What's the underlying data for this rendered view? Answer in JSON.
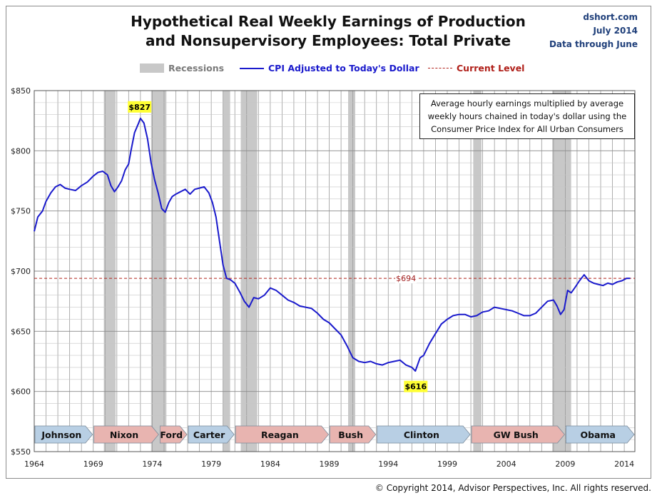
{
  "header": {
    "title_line1": "Hypothetical Real Weekly Earnings of Production",
    "title_line2": "and Nonsupervisory Employees: Total Private",
    "source_site": "dshort.com",
    "source_date": "July 2014",
    "source_data_through": "Data through June"
  },
  "legend": {
    "recessions": "Recessions",
    "series": "CPI Adjusted to Today's Dollar",
    "current": "Current Level"
  },
  "note": "Average hourly earnings multiplied by average weekly hours chained in today's dollar using the Consumer Price Index for All Urban Consumers",
  "copyright": "© Copyright 2014, Advisor Perspectives, Inc. All rights reserved.",
  "colors": {
    "series": "#1a1acc",
    "recession": "#c8c8c8",
    "current": "#b0201a",
    "callout": "#ffff33",
    "pres_blue": "#b8cfe4",
    "pres_red": "#e8b4b0"
  },
  "chart_data": {
    "type": "line",
    "title": "Hypothetical Real Weekly Earnings of Production and Nonsupervisory Employees: Total Private",
    "xlabel": "",
    "ylabel": "",
    "xlim": [
      1964,
      2014.9
    ],
    "ylim": [
      550,
      850
    ],
    "y_ticks": [
      550,
      600,
      650,
      700,
      750,
      800,
      850
    ],
    "y_tick_labels": [
      "$550",
      "$600",
      "$650",
      "$700",
      "$750",
      "$800",
      "$850"
    ],
    "x_ticks": [
      1964,
      1969,
      1974,
      1979,
      1984,
      1989,
      1994,
      1999,
      2004,
      2009,
      2014
    ],
    "x_tick_labels": [
      "1964",
      "1969",
      "1974",
      "1979",
      "1984",
      "1989",
      "1994",
      "1999",
      "2004",
      "2009",
      "2014"
    ],
    "grid": true,
    "series": [
      {
        "name": "CPI Adjusted to Today's Dollar",
        "x": [
          1964.0,
          1964.3,
          1964.7,
          1965.0,
          1965.4,
          1965.8,
          1966.2,
          1966.6,
          1967.0,
          1967.5,
          1968.0,
          1968.5,
          1969.0,
          1969.4,
          1969.8,
          1970.2,
          1970.5,
          1970.8,
          1971.1,
          1971.4,
          1971.7,
          1972.0,
          1972.2,
          1972.5,
          1972.8,
          1973.0,
          1973.3,
          1973.6,
          1973.9,
          1974.2,
          1974.5,
          1974.8,
          1975.1,
          1975.4,
          1975.7,
          1976.0,
          1976.4,
          1976.8,
          1977.2,
          1977.6,
          1978.0,
          1978.4,
          1978.8,
          1979.1,
          1979.4,
          1979.7,
          1980.0,
          1980.3,
          1980.6,
          1981.0,
          1981.4,
          1981.8,
          1982.2,
          1982.6,
          1983.0,
          1983.5,
          1984.0,
          1984.5,
          1985.0,
          1985.5,
          1986.0,
          1986.5,
          1987.0,
          1987.5,
          1988.0,
          1988.5,
          1989.0,
          1989.5,
          1990.0,
          1990.5,
          1991.0,
          1991.5,
          1992.0,
          1992.5,
          1993.0,
          1993.5,
          1994.0,
          1994.5,
          1995.0,
          1995.5,
          1996.0,
          1996.3,
          1996.7,
          1997.0,
          1997.5,
          1998.0,
          1998.5,
          1999.0,
          1999.5,
          2000.0,
          2000.5,
          2001.0,
          2001.5,
          2002.0,
          2002.5,
          2003.0,
          2003.5,
          2004.0,
          2004.5,
          2005.0,
          2005.5,
          2006.0,
          2006.5,
          2007.0,
          2007.5,
          2008.0,
          2008.3,
          2008.6,
          2008.9,
          2009.2,
          2009.5,
          2009.8,
          2010.2,
          2010.6,
          2011.0,
          2011.4,
          2011.8,
          2012.2,
          2012.6,
          2013.0,
          2013.4,
          2013.8,
          2014.2,
          2014.5
        ],
        "values": [
          733,
          745,
          750,
          758,
          765,
          770,
          772,
          769,
          768,
          767,
          771,
          774,
          779,
          782,
          783,
          780,
          771,
          766,
          770,
          775,
          784,
          789,
          800,
          815,
          822,
          827,
          823,
          810,
          790,
          776,
          765,
          752,
          749,
          757,
          762,
          764,
          766,
          768,
          764,
          768,
          769,
          770,
          765,
          757,
          745,
          725,
          705,
          694,
          693,
          690,
          683,
          675,
          670,
          678,
          677,
          680,
          686,
          684,
          680,
          676,
          674,
          671,
          670,
          669,
          665,
          660,
          657,
          652,
          647,
          638,
          628,
          625,
          624,
          625,
          623,
          622,
          624,
          625,
          626,
          622,
          620,
          617,
          628,
          630,
          640,
          648,
          656,
          660,
          663,
          664,
          664,
          662,
          663,
          666,
          667,
          670,
          669,
          668,
          667,
          665,
          663,
          663,
          665,
          670,
          675,
          676,
          671,
          664,
          668,
          684,
          682,
          686,
          692,
          697,
          692,
          690,
          689,
          688,
          690,
          689,
          691,
          692,
          694,
          694
        ]
      },
      {
        "name": "Current Level",
        "x": [
          1964,
          2014.9
        ],
        "values": [
          694,
          694
        ]
      }
    ],
    "recessions": [
      {
        "start": 1969.9,
        "end": 1970.9
      },
      {
        "start": 1973.9,
        "end": 1975.2
      },
      {
        "start": 1980.0,
        "end": 1980.6
      },
      {
        "start": 1981.5,
        "end": 1982.9
      },
      {
        "start": 1990.6,
        "end": 1991.2
      },
      {
        "start": 2001.2,
        "end": 2001.9
      },
      {
        "start": 2007.9,
        "end": 2009.5
      }
    ],
    "annotations": [
      {
        "text": "$827",
        "x": 1972.9,
        "y": 827
      },
      {
        "text": "$616",
        "x": 1996.3,
        "y": 616
      },
      {
        "text": "$694",
        "x": 1995.5,
        "y": 694
      }
    ],
    "presidents": [
      {
        "name": "Johnson",
        "start": 1964.0,
        "end": 1969.0,
        "party": "D"
      },
      {
        "name": "Nixon",
        "start": 1969.0,
        "end": 1974.6,
        "party": "R"
      },
      {
        "name": "Ford",
        "start": 1974.6,
        "end": 1977.0,
        "party": "R"
      },
      {
        "name": "Carter",
        "start": 1977.0,
        "end": 1981.0,
        "party": "D"
      },
      {
        "name": "Reagan",
        "start": 1981.0,
        "end": 1989.0,
        "party": "R"
      },
      {
        "name": "Bush",
        "start": 1989.0,
        "end": 1993.0,
        "party": "R"
      },
      {
        "name": "Clinton",
        "start": 1993.0,
        "end": 2001.0,
        "party": "D"
      },
      {
        "name": "GW Bush",
        "start": 2001.0,
        "end": 2009.0,
        "party": "R"
      },
      {
        "name": "Obama",
        "start": 2009.0,
        "end": 2014.9,
        "party": "D"
      }
    ]
  }
}
